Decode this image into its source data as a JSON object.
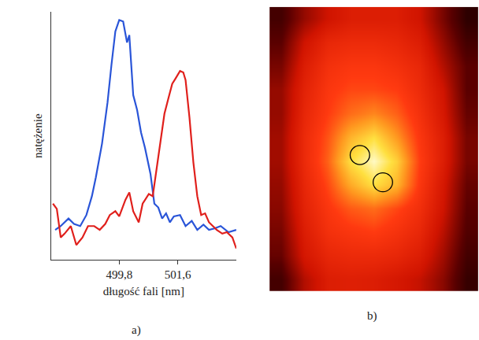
{
  "chart_data": [
    {
      "type": "line",
      "annotations": [
        {
          "text": "a)"
        }
      ],
      "x_label": "długość fali [nm]",
      "y_label": "natężenie",
      "xlim": [
        497.7,
        503.4
      ],
      "ylim": [
        0,
        105
      ],
      "xticks": [
        {
          "value": 499.8,
          "label": "499,8"
        },
        {
          "value": 501.6,
          "label": "501,6"
        }
      ],
      "yticks": [],
      "tick_labels": "x",
      "grid": false,
      "series": [
        {
          "color": "#2a55d8",
          "x": [
            497.83,
            498.0,
            498.24,
            498.41,
            498.6,
            498.79,
            498.96,
            499.08,
            499.27,
            499.44,
            499.56,
            499.68,
            499.8,
            499.92,
            500.04,
            500.11,
            500.23,
            500.35,
            500.47,
            500.59,
            500.76,
            500.88,
            501.0,
            501.12,
            501.24,
            501.36,
            501.48,
            501.67,
            501.84,
            502.03,
            502.2,
            502.39,
            502.56,
            502.73,
            502.92,
            503.16,
            503.4
          ],
          "values": [
            12.7,
            14.3,
            17.5,
            15.2,
            14.3,
            19.0,
            27.0,
            34.9,
            49.2,
            66.7,
            82.5,
            96.8,
            101.6,
            101.0,
            92.1,
            95.2,
            69.8,
            63.5,
            54.0,
            47.6,
            36.5,
            23.8,
            22.2,
            17.5,
            19.7,
            15.9,
            18.4,
            19.0,
            14.3,
            16.5,
            12.7,
            14.9,
            12.7,
            13.3,
            14.3,
            11.7,
            12.7
          ]
        },
        {
          "color": "#e0201c",
          "x": [
            497.76,
            497.88,
            498.0,
            498.12,
            498.31,
            498.48,
            498.67,
            498.84,
            499.03,
            499.2,
            499.37,
            499.51,
            499.68,
            499.8,
            499.99,
            500.11,
            500.23,
            500.4,
            500.52,
            500.71,
            500.83,
            500.95,
            501.07,
            501.19,
            501.31,
            501.43,
            501.53,
            501.67,
            501.77,
            501.84,
            501.96,
            502.08,
            502.2,
            502.32,
            502.44,
            502.56,
            502.68,
            502.8,
            502.97,
            503.11,
            503.28,
            503.4
          ],
          "values": [
            23.8,
            21.6,
            9.5,
            11.1,
            14.3,
            6.3,
            9.5,
            14.3,
            14.3,
            12.7,
            15.2,
            19.0,
            20.6,
            18.4,
            25.4,
            28.6,
            20.6,
            15.9,
            23.8,
            27.9,
            27.0,
            38.1,
            50.8,
            61.9,
            68.3,
            74.6,
            76.8,
            80.0,
            79.4,
            76.2,
            60.3,
            41.3,
            27.0,
            19.0,
            19.7,
            15.9,
            14.3,
            12.7,
            11.1,
            11.7,
            9.5,
            4.8
          ]
        }
      ]
    },
    {
      "type": "heatmap",
      "annotations": [
        {
          "text": "b)"
        }
      ],
      "tick_labels": false,
      "zlim": [
        0,
        100
      ],
      "cells": [
        [
          15,
          30,
          40,
          45,
          45,
          45,
          40,
          25,
          10
        ],
        [
          20,
          40,
          50,
          52,
          52,
          50,
          45,
          30,
          15
        ],
        [
          25,
          45,
          55,
          58,
          58,
          55,
          50,
          35,
          20
        ],
        [
          30,
          48,
          58,
          62,
          62,
          60,
          52,
          40,
          20
        ],
        [
          30,
          50,
          60,
          68,
          72,
          66,
          55,
          42,
          22
        ],
        [
          32,
          52,
          64,
          80,
          88,
          75,
          58,
          45,
          25
        ],
        [
          32,
          52,
          66,
          88,
          98,
          85,
          60,
          45,
          25
        ],
        [
          30,
          50,
          62,
          78,
          88,
          80,
          58,
          42,
          22
        ],
        [
          28,
          48,
          58,
          65,
          68,
          62,
          54,
          40,
          20
        ],
        [
          25,
          45,
          55,
          58,
          60,
          56,
          50,
          36,
          18
        ],
        [
          22,
          42,
          50,
          52,
          52,
          50,
          45,
          32,
          15
        ],
        [
          15,
          35,
          45,
          46,
          45,
          42,
          38,
          28,
          12
        ]
      ]
    }
  ]
}
